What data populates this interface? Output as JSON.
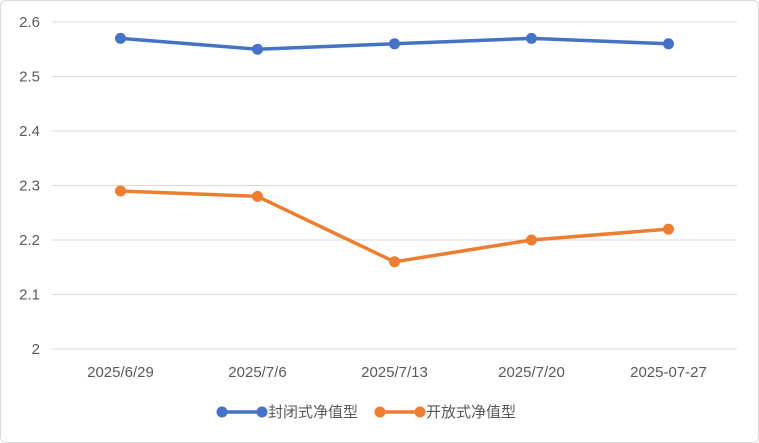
{
  "chart_data": {
    "type": "line",
    "categories": [
      "2025/6/29",
      "2025/7/6",
      "2025/7/13",
      "2025/7/20",
      "2025-07-27"
    ],
    "series": [
      {
        "name": "封闭式净值型",
        "color": "#4472c4",
        "values": [
          2.57,
          2.55,
          2.56,
          2.57,
          2.56
        ]
      },
      {
        "name": "开放式净值型",
        "color": "#ed7d31",
        "values": [
          2.29,
          2.28,
          2.16,
          2.2,
          2.22
        ]
      }
    ],
    "yticks": [
      "2",
      "2.1",
      "2.2",
      "2.3",
      "2.4",
      "2.5",
      "2.6"
    ],
    "ylim": [
      2,
      2.6
    ],
    "grid": true,
    "legend": "bottom"
  }
}
